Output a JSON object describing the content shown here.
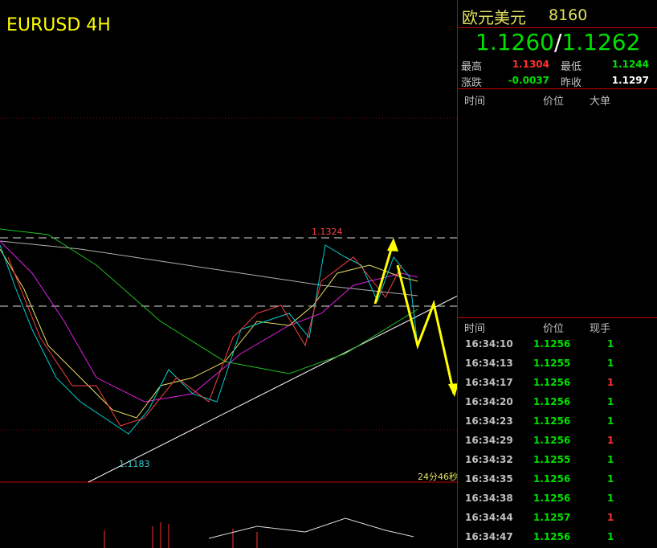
{
  "chart": {
    "title": "EURUSD 4H",
    "high_label": "1.1324",
    "low_label": "1.1183",
    "countdown": "24分46秒"
  },
  "quote": {
    "name": "欧元美元",
    "code": "8160",
    "bid": "1.1260",
    "separator": "/",
    "ask": "1.1262",
    "stats": [
      {
        "label": "最高",
        "value": "1.1304",
        "color": "#ff3030"
      },
      {
        "label": "最低",
        "value": "1.1244",
        "color": "#00e000"
      },
      {
        "label": "涨跌",
        "value": "-0.0037",
        "color": "#00e000"
      },
      {
        "label": "昨收",
        "value": "1.1297",
        "color": "#ffffff"
      }
    ]
  },
  "big_orders": {
    "headers": [
      "时间",
      "价位",
      "大单"
    ]
  },
  "trades": {
    "headers": [
      "时间",
      "价位",
      "现手"
    ],
    "rows": [
      {
        "time": "16:34:10",
        "price": "1.1256",
        "volume": "1",
        "color": "#00e000"
      },
      {
        "time": "16:34:13",
        "price": "1.1255",
        "volume": "1",
        "color": "#00e000"
      },
      {
        "time": "16:34:17",
        "price": "1.1256",
        "volume": "1",
        "color": "#ff3030"
      },
      {
        "time": "16:34:20",
        "price": "1.1256",
        "volume": "1",
        "color": "#00e000"
      },
      {
        "time": "16:34:23",
        "price": "1.1256",
        "volume": "1",
        "color": "#00e000"
      },
      {
        "time": "16:34:29",
        "price": "1.1256",
        "volume": "1",
        "color": "#ff3030"
      },
      {
        "time": "16:34:32",
        "price": "1.1255",
        "volume": "1",
        "color": "#00e000"
      },
      {
        "time": "16:34:35",
        "price": "1.1256",
        "volume": "1",
        "color": "#00e000"
      },
      {
        "time": "16:34:38",
        "price": "1.1256",
        "volume": "1",
        "color": "#00e000"
      },
      {
        "time": "16:34:44",
        "price": "1.1257",
        "volume": "1",
        "color": "#ff3030"
      },
      {
        "time": "16:34:47",
        "price": "1.1256",
        "volume": "1",
        "color": "#00e000"
      }
    ]
  }
}
